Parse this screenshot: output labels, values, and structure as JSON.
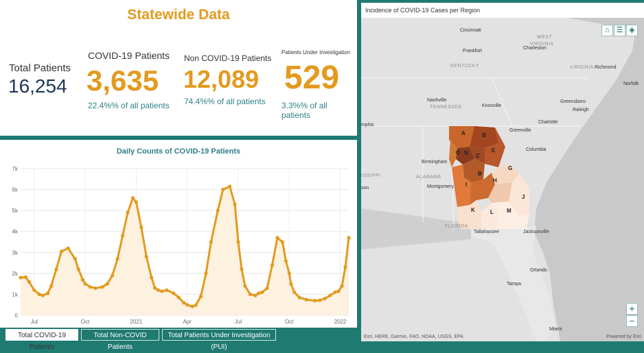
{
  "stats": {
    "title": "Statewide Data",
    "total_label": "Total Patients",
    "total_value": "16,254",
    "covid_label": "COVID-19 Patients",
    "covid_value": "3,635",
    "covid_pct": "22.4%% of all patients",
    "noncovid_label": "Non COVID-19 Patients",
    "noncovid_value": "12,089",
    "noncovid_pct": "74.4%% of all patients",
    "pui_label": "Patients Under Investigation",
    "pui_value": "529",
    "pui_pct": "3.3%% of all patients"
  },
  "colors": {
    "accent": "#e39a1e",
    "teal": "#1f7a72",
    "navy": "#1d3557"
  },
  "chart_data": {
    "type": "area",
    "title": "Daily Counts of COVID-19 Patients",
    "xlabel": "",
    "ylabel": "",
    "ylim": [
      0,
      7000
    ],
    "yticks": [
      "0",
      "1k",
      "2k",
      "3k",
      "4k",
      "5k",
      "6k",
      "7k"
    ],
    "xticks": [
      "Jul",
      "Oct",
      "2021",
      "Apr",
      "Jul",
      "Oct",
      "2022"
    ],
    "x": [
      -0.8,
      -0.5,
      -0.3,
      0.0,
      0.3,
      0.5,
      0.8,
      1.0,
      1.3,
      1.6,
      2.0,
      2.4,
      2.6,
      2.85,
      3.0,
      3.3,
      3.6,
      4.0,
      4.3,
      4.6,
      4.9,
      5.2,
      5.5,
      5.8,
      6.0,
      6.3,
      6.6,
      6.9,
      7.1,
      7.3,
      7.5,
      7.8,
      8.2,
      8.5,
      8.8,
      9.0,
      9.3,
      9.5,
      9.8,
      10.1,
      10.4,
      10.8,
      11.1,
      11.5,
      11.8,
      12.0,
      12.2,
      12.4,
      12.7,
      13.0,
      13.2,
      13.4,
      13.7,
      14.0,
      14.3,
      14.6,
      14.8,
      15.0,
      15.1,
      15.3,
      15.6,
      16.0,
      16.5,
      16.8,
      17.1,
      17.4,
      17.7,
      17.9,
      18.1,
      18.3,
      18.5
    ],
    "series": [
      {
        "values": [
          1800,
          1820,
          1600,
          1200,
          1000,
          950,
          1050,
          1400,
          2200,
          3050,
          3200,
          2700,
          2200,
          1700,
          1500,
          1350,
          1300,
          1350,
          1500,
          1900,
          2700,
          3800,
          4900,
          5600,
          5400,
          4200,
          2800,
          1800,
          1300,
          1200,
          1150,
          1200,
          1050,
          850,
          600,
          500,
          420,
          480,
          900,
          2000,
          3500,
          5000,
          6000,
          6150,
          5300,
          3500,
          2200,
          1400,
          1000,
          950,
          1050,
          1100,
          1300,
          2400,
          3700,
          3500,
          2600,
          2000,
          1500,
          1100,
          850,
          750,
          700,
          720,
          800,
          950,
          1100,
          1150,
          1400,
          2300,
          3700
        ]
      }
    ]
  },
  "map": {
    "title": "Incidence of COVID-19 Cases per Region",
    "attribution": "Esri, HERE, Garmin, FAO, NOAA, USGS, EPA",
    "powered": "Powered by Esri",
    "home_icon": "home-icon",
    "legend_icon": "list-icon",
    "layers_icon": "layers-icon",
    "zoom_in": "+",
    "zoom_out": "−",
    "cities": [
      "Cincinnati",
      "Frankfort",
      "Charleston",
      "Richmond",
      "Norfolk",
      "Nashville",
      "Knoxville",
      "Greensboro",
      "Raleigh",
      "Charlotte",
      "Greenville",
      "Columbia",
      "Birmingham",
      "Montgomery",
      "Tallahassee",
      "Jacksonville",
      "Orlando",
      "Tampa",
      "Miami",
      "mphis",
      "son"
    ],
    "states": [
      "WEST",
      "VIRGINIA",
      "KENTUCKY",
      "VIRGINIA",
      "TENNESSEE",
      "ALABAMA",
      "ISSIPPI",
      "FLORIDA"
    ],
    "regions": [
      "A",
      "B",
      "C",
      "D",
      "E",
      "F",
      "G",
      "H",
      "I",
      "J",
      "K",
      "L",
      "M",
      "N",
      "O"
    ]
  },
  "tabs": [
    "Total COVID-19 Patients",
    "Total Non-COVID Patients",
    "Total Patients Under Investigation (PUI)"
  ]
}
